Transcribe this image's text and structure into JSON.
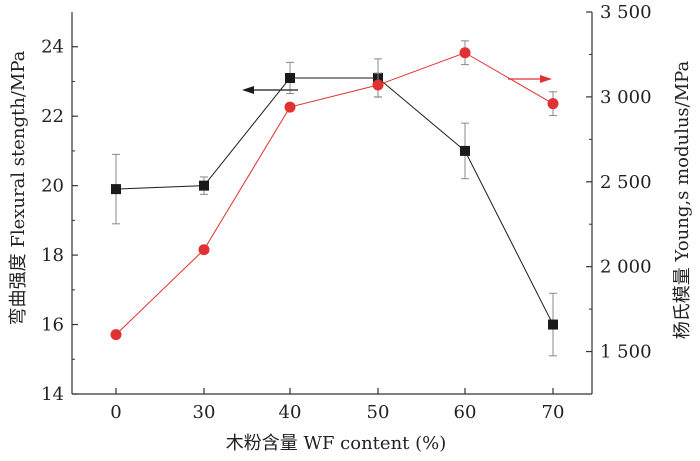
{
  "chart_data": {
    "type": "line",
    "categories": [
      "0",
      "30",
      "40",
      "50",
      "60",
      "70"
    ],
    "xlabel": "木粉含量  WF content (%)",
    "ylabel_left": "弯曲强度  Flexural stength/MPa",
    "ylabel_right": "杨氏模量  Young,s modulus/MPa",
    "y_left": {
      "lim": [
        14,
        25
      ],
      "ticks": [
        14,
        16,
        18,
        20,
        22,
        24
      ],
      "tick_labels": [
        "14",
        "16",
        "18",
        "20",
        "22",
        "24"
      ]
    },
    "y_right": {
      "lim": [
        1250,
        3500
      ],
      "ticks": [
        1500,
        2000,
        2500,
        3000,
        3500
      ],
      "tick_labels": [
        "1 500",
        "2 000",
        "2 500",
        "3 000",
        "3 500"
      ]
    },
    "series": [
      {
        "axis": "left",
        "color": "#1a1a1a",
        "marker": "square",
        "values": [
          19.9,
          20.0,
          23.1,
          23.1,
          21.0,
          16.0
        ],
        "error": [
          1.0,
          0.25,
          0.45,
          0.55,
          0.8,
          0.9
        ],
        "arrow_direction": "left"
      },
      {
        "axis": "right",
        "color": "#e03232",
        "marker": "circle",
        "values": [
          1600,
          2100,
          2940,
          3070,
          3260,
          2960
        ],
        "error": [
          0,
          0,
          0,
          70,
          70,
          70
        ],
        "arrow_direction": "right"
      }
    ],
    "grid": false
  }
}
